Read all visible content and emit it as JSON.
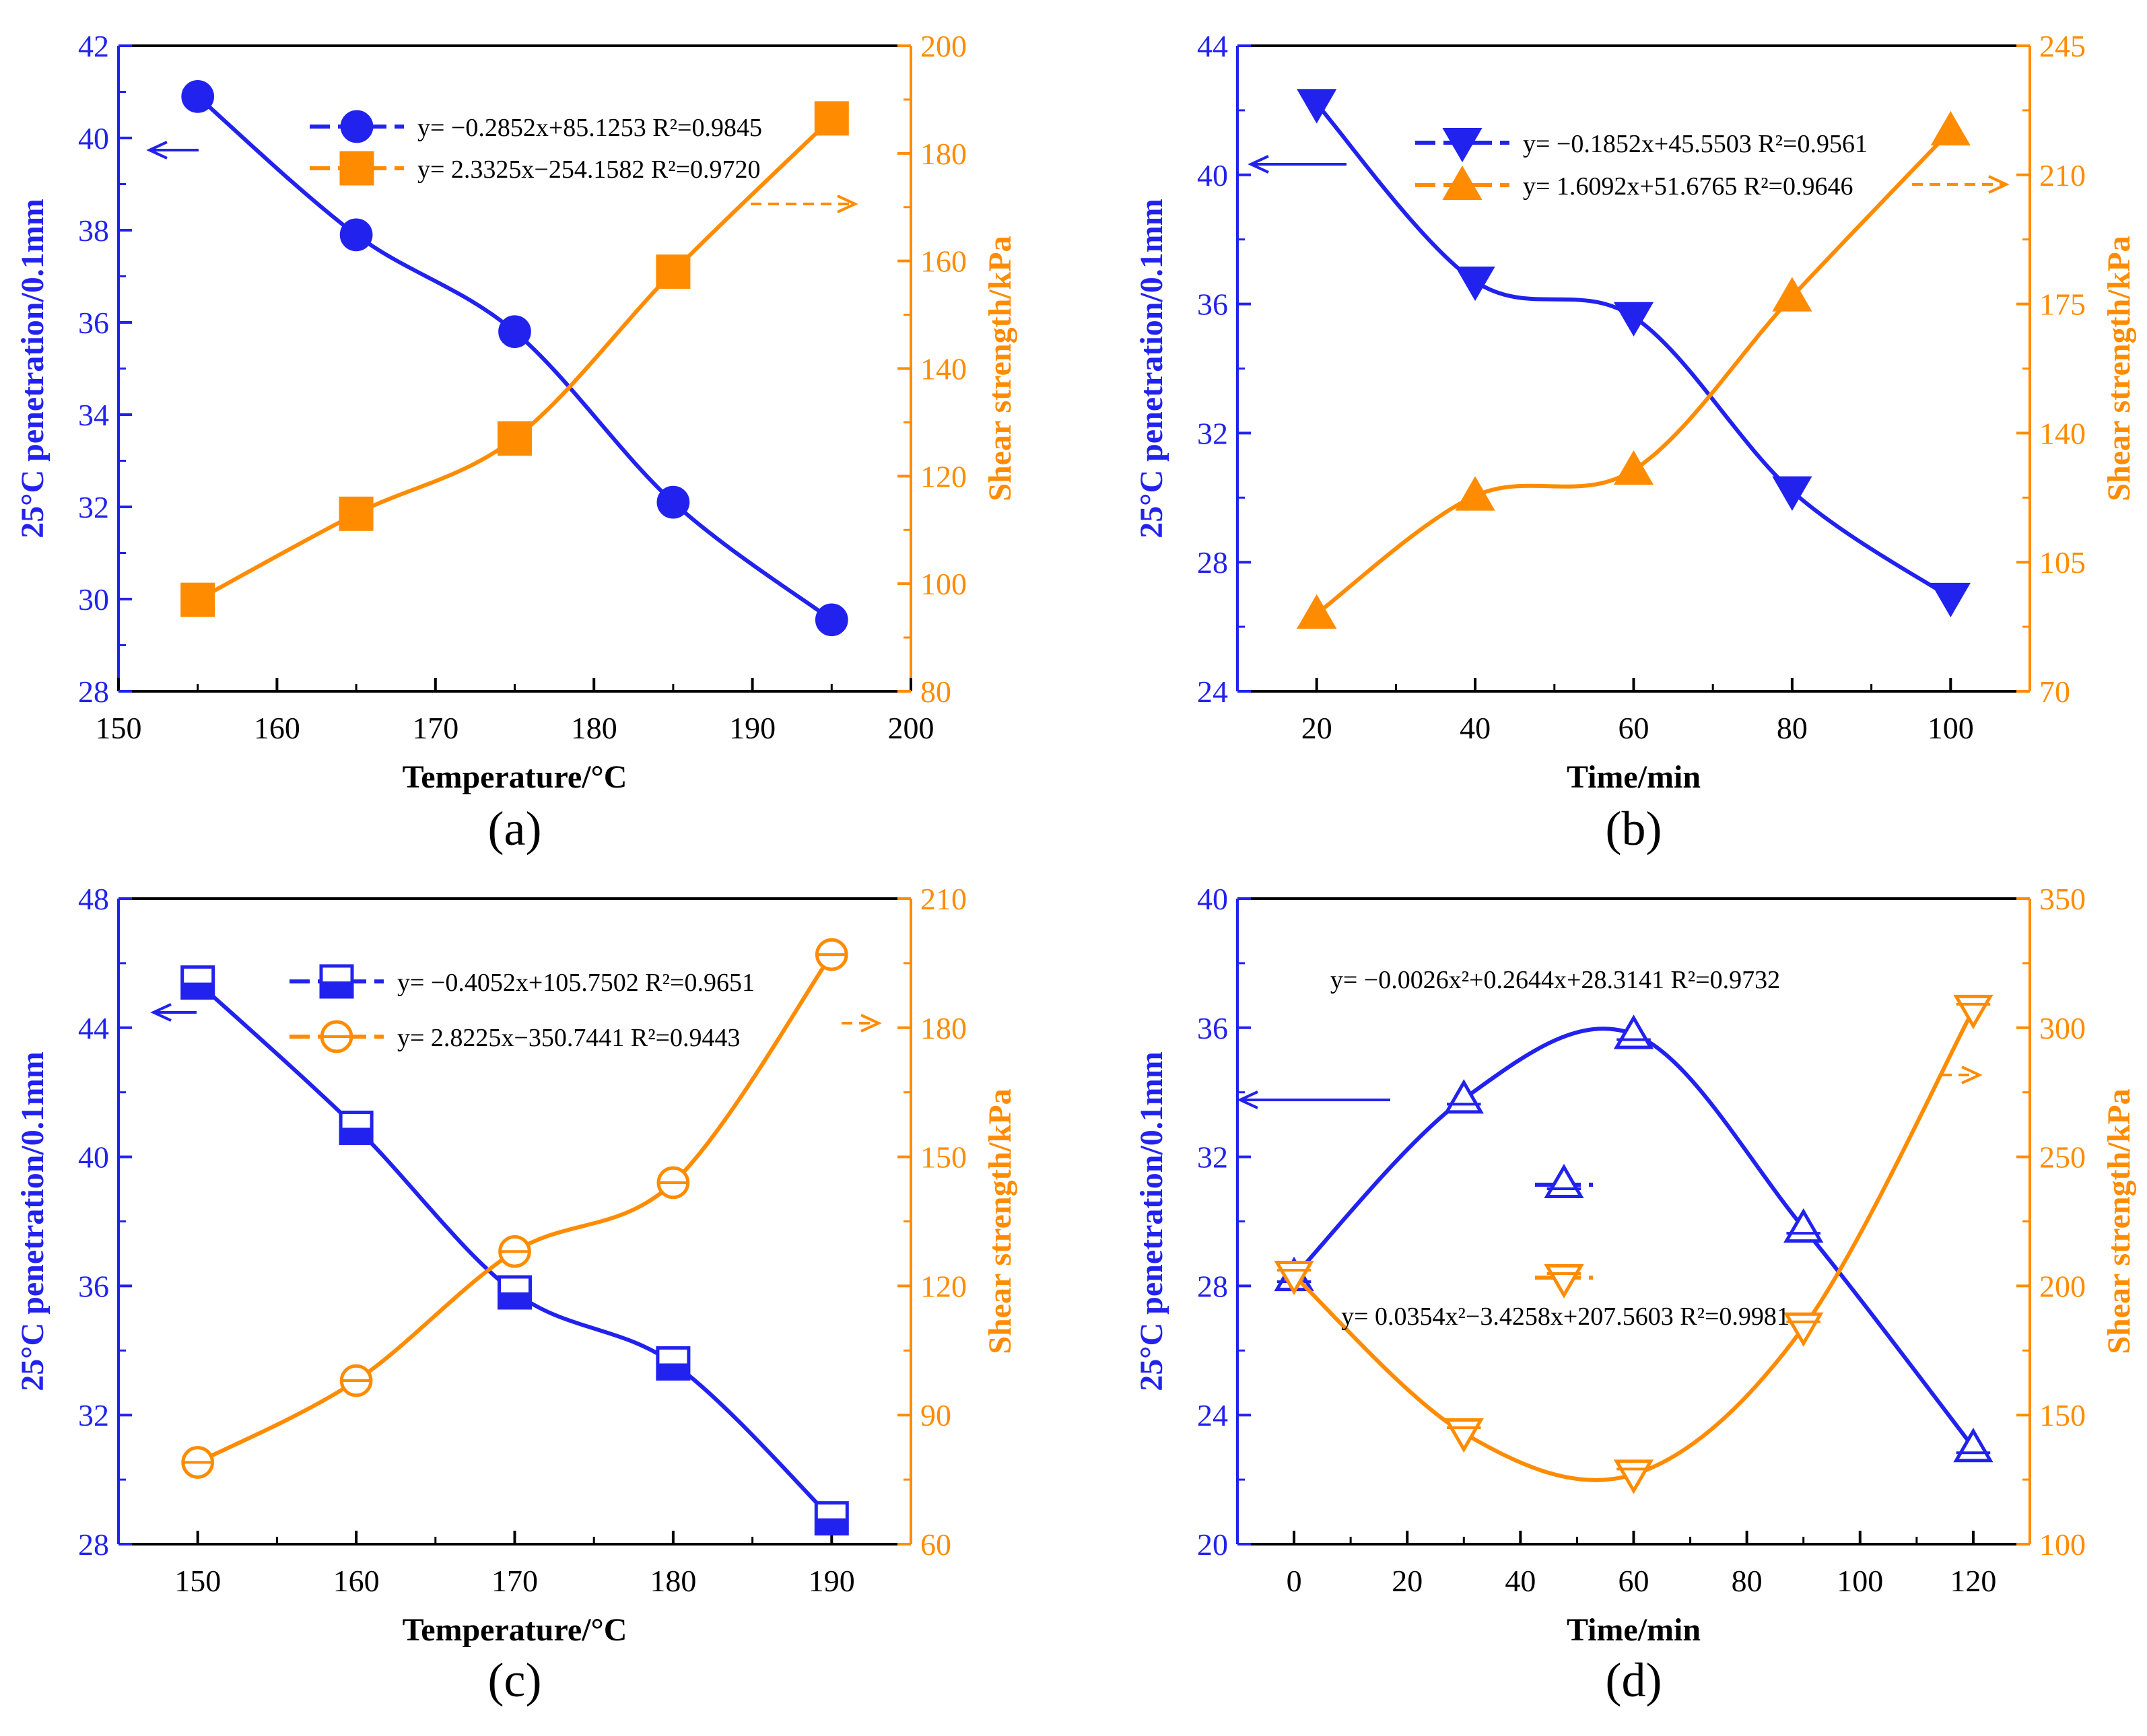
{
  "colors": {
    "blue": "#2222ee",
    "orange": "#ff8c00",
    "black": "#000000"
  },
  "chart_data": [
    {
      "type": "line",
      "panel_label": "(a)",
      "xlabel": "Temperature/°C",
      "ylabel_left": "25°C penetration/0.1mm",
      "ylabel_right": "Shear strength/kPa",
      "xlim": [
        150,
        200
      ],
      "x_ticks": [
        150,
        160,
        170,
        180,
        190,
        200
      ],
      "y_left_lim": [
        28,
        42
      ],
      "y_left_ticks": [
        28,
        30,
        32,
        34,
        36,
        38,
        40,
        42
      ],
      "y_right_lim": [
        80,
        200
      ],
      "y_right_ticks": [
        80,
        100,
        120,
        140,
        160,
        180,
        200
      ],
      "series": [
        {
          "name": "penetration",
          "axis": "left",
          "marker": "circle",
          "fill": "filled",
          "equation": "y= −0.2852x+85.1253 R²=0.9845",
          "x": [
            155,
            165,
            175,
            185,
            195
          ],
          "values": [
            40.9,
            37.9,
            35.8,
            32.1,
            29.55
          ]
        },
        {
          "name": "shear strength",
          "axis": "right",
          "marker": "square",
          "fill": "filled",
          "equation": "y= 2.3325x−254.1582 R²=0.9720",
          "x": [
            155,
            165,
            175,
            185,
            195
          ],
          "values": [
            97,
            113,
            127,
            158,
            186.5
          ]
        }
      ]
    },
    {
      "type": "line",
      "panel_label": "(b)",
      "xlabel": "Time/min",
      "ylabel_left": "25°C penetration/0.1mm",
      "ylabel_right": "Shear strength/kPa",
      "xlim": [
        10,
        110
      ],
      "x_ticks": [
        20,
        40,
        60,
        80,
        100
      ],
      "y_left_lim": [
        24,
        44
      ],
      "y_left_ticks": [
        24,
        28,
        32,
        36,
        40,
        44
      ],
      "y_right_lim": [
        70,
        245
      ],
      "y_right_ticks": [
        70,
        105,
        140,
        175,
        210,
        245
      ],
      "series": [
        {
          "name": "penetration",
          "axis": "left",
          "marker": "triangle-down",
          "fill": "filled",
          "equation": "y= −0.1852x+45.5503 R²=0.9561",
          "x": [
            20,
            40,
            60,
            80,
            100
          ],
          "values": [
            42.2,
            36.7,
            35.6,
            30.2,
            26.9
          ]
        },
        {
          "name": "shear strength",
          "axis": "right",
          "marker": "triangle-up",
          "fill": "filled",
          "equation": "y= 1.6092x+51.6765 R²=0.9646",
          "x": [
            20,
            40,
            60,
            80,
            100
          ],
          "values": [
            91,
            123,
            130,
            177,
            222
          ]
        }
      ]
    },
    {
      "type": "line",
      "panel_label": "(c)",
      "xlabel": "Temperature/°C",
      "ylabel_left": "25°C penetration/0.1mm",
      "ylabel_right": "Shear strength/kPa",
      "xlim": [
        145,
        195
      ],
      "x_ticks": [
        150,
        160,
        170,
        180,
        190
      ],
      "y_left_lim": [
        28,
        48
      ],
      "y_left_ticks": [
        28,
        32,
        36,
        40,
        44,
        48
      ],
      "y_right_lim": [
        60,
        210
      ],
      "y_right_ticks": [
        60,
        90,
        120,
        150,
        180,
        210
      ],
      "series": [
        {
          "name": "penetration",
          "axis": "left",
          "marker": "square",
          "fill": "half",
          "equation": "y= −0.4052x+105.7502 R²=0.9651",
          "x": [
            150,
            160,
            170,
            180,
            190
          ],
          "values": [
            45.4,
            40.9,
            35.8,
            33.6,
            28.8
          ]
        },
        {
          "name": "shear strength",
          "axis": "right",
          "marker": "circle",
          "fill": "open-line",
          "equation": "y= 2.8225x−350.7441 R²=0.9443",
          "x": [
            150,
            160,
            170,
            180,
            190
          ],
          "values": [
            79,
            98,
            128,
            144,
            197
          ]
        }
      ]
    },
    {
      "type": "line",
      "panel_label": "(d)",
      "xlabel": "Time/min",
      "ylabel_left": "25°C penetration/0.1mm",
      "ylabel_right": "Shear strength/kPa",
      "xlim": [
        -10,
        130
      ],
      "x_ticks": [
        0,
        20,
        40,
        60,
        80,
        100,
        120
      ],
      "y_left_lim": [
        20,
        40
      ],
      "y_left_ticks": [
        20,
        24,
        28,
        32,
        36,
        40
      ],
      "y_right_lim": [
        100,
        350
      ],
      "y_right_ticks": [
        100,
        150,
        200,
        250,
        300,
        350
      ],
      "series": [
        {
          "name": "penetration",
          "axis": "left",
          "marker": "triangle-up",
          "fill": "open-line",
          "equation": "y= −0.0026x²+0.2644x+28.3141 R²=0.9732",
          "x": [
            0,
            30,
            60,
            90,
            120
          ],
          "values": [
            28.3,
            33.8,
            35.8,
            29.8,
            23.0
          ]
        },
        {
          "name": "shear strength",
          "axis": "right",
          "marker": "triangle-down",
          "fill": "open-line",
          "equation": "y= 0.0354x²−3.4258x+207.5603 R²=0.9981",
          "x": [
            0,
            30,
            60,
            90,
            120
          ],
          "values": [
            204,
            143,
            127,
            184,
            307
          ]
        }
      ]
    }
  ]
}
